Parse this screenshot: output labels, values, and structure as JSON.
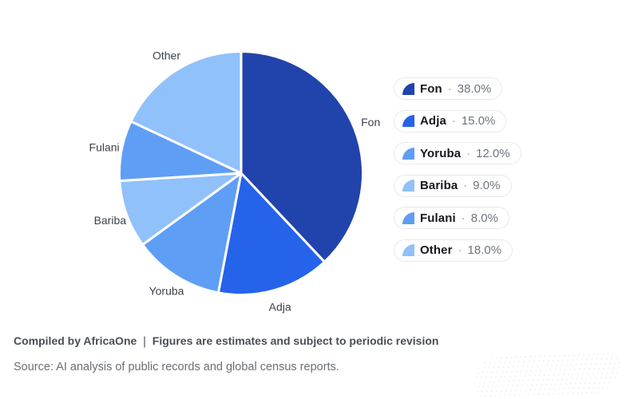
{
  "chart_data": {
    "type": "pie",
    "title": "",
    "categories": [
      "Fon",
      "Adja",
      "Yoruba",
      "Bariba",
      "Fulani",
      "Other"
    ],
    "values": [
      38.0,
      15.0,
      12.0,
      9.0,
      8.0,
      18.0
    ],
    "slices": [
      {
        "label": "Fon",
        "value": 38.0,
        "display": "38.0%",
        "color": "#2143ac"
      },
      {
        "label": "Adja",
        "value": 15.0,
        "display": "15.0%",
        "color": "#2563eb"
      },
      {
        "label": "Yoruba",
        "value": 12.0,
        "display": "12.0%",
        "color": "#5f9ef5"
      },
      {
        "label": "Bariba",
        "value": 9.0,
        "display": "9.0%",
        "color": "#90c1fa"
      },
      {
        "label": "Fulani",
        "value": 8.0,
        "display": "8.0%",
        "color": "#5f9ef5"
      },
      {
        "label": "Other",
        "value": 18.0,
        "display": "18.0%",
        "color": "#90c1fa"
      }
    ],
    "start_angle_deg": -90,
    "direction": "clockwise",
    "legend_position": "right",
    "slice_border_color": "#ffffff"
  },
  "separator": "·",
  "footer": {
    "compiled": "Compiled by AfricaOne ❘ Figures are estimates and subject to periodic revision",
    "source": "Source: AI analysis of public records and global census reports."
  }
}
